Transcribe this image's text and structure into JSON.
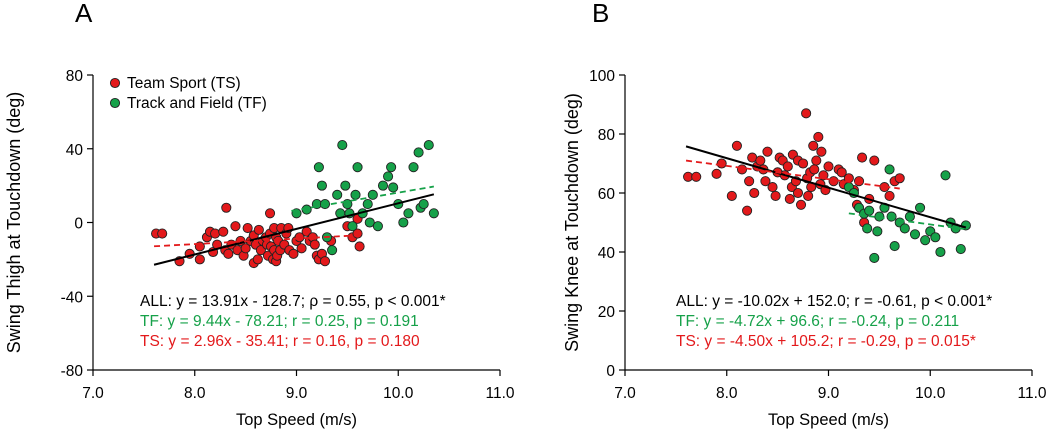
{
  "chart_data": [
    {
      "panel": "A",
      "type": "scatter",
      "xlabel": "Top Speed (m/s)",
      "ylabel": "Swing Thigh at Touchdown (deg)",
      "xlim": [
        7.0,
        11.0
      ],
      "ylim": [
        -80,
        80
      ],
      "xticks": [
        "7.0",
        "8.0",
        "9.0",
        "10.0",
        "11.0"
      ],
      "yticks": [
        "-80",
        "-40",
        "0",
        "40",
        "80"
      ],
      "legend": {
        "placement": "top-left",
        "entries": [
          "Team Sport (TS)",
          "Track and Field (TF)"
        ]
      },
      "series": [
        {
          "name": "Team Sport (TS)",
          "color": "#e3191b",
          "points": [
            [
              7.62,
              -6
            ],
            [
              7.68,
              -6
            ],
            [
              7.85,
              -21
            ],
            [
              7.95,
              -17
            ],
            [
              8.05,
              -20
            ],
            [
              8.05,
              -13
            ],
            [
              8.12,
              -8
            ],
            [
              8.15,
              -5
            ],
            [
              8.18,
              -16
            ],
            [
              8.2,
              -6
            ],
            [
              8.22,
              -12
            ],
            [
              8.28,
              -5
            ],
            [
              8.3,
              -15
            ],
            [
              8.31,
              8
            ],
            [
              8.33,
              -17
            ],
            [
              8.36,
              -12
            ],
            [
              8.4,
              -2
            ],
            [
              8.42,
              -15
            ],
            [
              8.45,
              -10
            ],
            [
              8.48,
              -18
            ],
            [
              8.5,
              -14
            ],
            [
              8.52,
              -3
            ],
            [
              8.55,
              -10
            ],
            [
              8.58,
              -7
            ],
            [
              8.58,
              -22
            ],
            [
              8.6,
              -12
            ],
            [
              8.62,
              -20
            ],
            [
              8.63,
              -4
            ],
            [
              8.65,
              -15
            ],
            [
              8.67,
              -10
            ],
            [
              8.7,
              -8
            ],
            [
              8.71,
              -12
            ],
            [
              8.72,
              -18
            ],
            [
              8.74,
              -6
            ],
            [
              8.74,
              5
            ],
            [
              8.75,
              -13
            ],
            [
              8.77,
              -20
            ],
            [
              8.78,
              -3
            ],
            [
              8.78,
              -15
            ],
            [
              8.8,
              -21
            ],
            [
              8.8,
              -8
            ],
            [
              8.81,
              -18
            ],
            [
              8.82,
              -10
            ],
            [
              8.84,
              -15
            ],
            [
              8.85,
              -3
            ],
            [
              8.88,
              -12
            ],
            [
              8.9,
              -6
            ],
            [
              8.92,
              -3
            ],
            [
              8.93,
              -15
            ],
            [
              8.97,
              -17
            ],
            [
              9.0,
              -10
            ],
            [
              9.03,
              -8
            ],
            [
              9.05,
              -14
            ],
            [
              9.1,
              -5
            ],
            [
              9.13,
              -10
            ],
            [
              9.16,
              -8
            ],
            [
              9.18,
              -12
            ],
            [
              9.2,
              -18
            ],
            [
              9.22,
              -20
            ],
            [
              9.25,
              -17
            ],
            [
              9.28,
              -21
            ],
            [
              9.34,
              -10
            ],
            [
              9.5,
              -2
            ],
            [
              9.55,
              -8
            ],
            [
              9.6,
              2
            ],
            [
              9.6,
              -6
            ],
            [
              9.62,
              -13
            ]
          ]
        },
        {
          "name": "Track and Field (TF)",
          "color": "#16a149",
          "points": [
            [
              9.0,
              5
            ],
            [
              9.1,
              7
            ],
            [
              9.2,
              10
            ],
            [
              9.22,
              30
            ],
            [
              9.25,
              20
            ],
            [
              9.28,
              10
            ],
            [
              9.3,
              -8
            ],
            [
              9.35,
              -15
            ],
            [
              9.4,
              15
            ],
            [
              9.43,
              5
            ],
            [
              9.45,
              42
            ],
            [
              9.48,
              20
            ],
            [
              9.5,
              10
            ],
            [
              9.52,
              5
            ],
            [
              9.55,
              -2
            ],
            [
              9.58,
              15
            ],
            [
              9.6,
              30
            ],
            [
              9.65,
              5
            ],
            [
              9.7,
              10
            ],
            [
              9.72,
              0
            ],
            [
              9.75,
              15
            ],
            [
              9.8,
              -2
            ],
            [
              9.85,
              20
            ],
            [
              9.9,
              25
            ],
            [
              9.93,
              30
            ],
            [
              9.95,
              19
            ],
            [
              10.0,
              10
            ],
            [
              10.05,
              0
            ],
            [
              10.1,
              5
            ],
            [
              10.15,
              30
            ],
            [
              10.2,
              38
            ],
            [
              10.22,
              8
            ],
            [
              10.25,
              10
            ],
            [
              10.3,
              42
            ],
            [
              10.35,
              5
            ]
          ]
        }
      ],
      "fit_lines": [
        {
          "name": "ALL",
          "color": "#000000",
          "style": "solid",
          "x": [
            7.6,
            10.35
          ],
          "y": [
            -22.9,
            15.3
          ]
        },
        {
          "name": "TF",
          "color": "#16a149",
          "style": "dashed",
          "x": [
            8.95,
            10.35
          ],
          "y": [
            6.3,
            19.5
          ]
        },
        {
          "name": "TS",
          "color": "#e3191b",
          "style": "dashed",
          "x": [
            7.6,
            9.65
          ],
          "y": [
            -12.9,
            -6.8
          ]
        }
      ],
      "annotations": [
        {
          "color": "#000000",
          "text": "ALL: y = 13.91x - 128.7; ρ = 0.55, p < 0.001*"
        },
        {
          "color": "#16a149",
          "text": "TF: y = 9.44x - 78.21; r = 0.25, p = 0.191"
        },
        {
          "color": "#e3191b",
          "text": "TS: y = 2.96x - 35.41; r = 0.16, p = 0.180"
        }
      ]
    },
    {
      "panel": "B",
      "type": "scatter",
      "xlabel": "Top Speed (m/s)",
      "ylabel": "Swing Knee at Touchdown (deg)",
      "xlim": [
        7.0,
        11.0
      ],
      "ylim": [
        0,
        100
      ],
      "xticks": [
        "7.0",
        "8.0",
        "9.0",
        "10.0",
        "11.0"
      ],
      "yticks": [
        "0",
        "20",
        "40",
        "60",
        "80",
        "100"
      ],
      "series": [
        {
          "name": "Team Sport (TS)",
          "color": "#e3191b",
          "points": [
            [
              7.62,
              65.5
            ],
            [
              7.7,
              65.5
            ],
            [
              7.9,
              66.5
            ],
            [
              7.95,
              70
            ],
            [
              8.05,
              59
            ],
            [
              8.1,
              76
            ],
            [
              8.15,
              68
            ],
            [
              8.2,
              54
            ],
            [
              8.22,
              64
            ],
            [
              8.25,
              72
            ],
            [
              8.27,
              60
            ],
            [
              8.3,
              69
            ],
            [
              8.33,
              71
            ],
            [
              8.36,
              68
            ],
            [
              8.38,
              64
            ],
            [
              8.4,
              74
            ],
            [
              8.45,
              62
            ],
            [
              8.48,
              59
            ],
            [
              8.5,
              67
            ],
            [
              8.52,
              72
            ],
            [
              8.55,
              71
            ],
            [
              8.57,
              66
            ],
            [
              8.6,
              69
            ],
            [
              8.62,
              58
            ],
            [
              8.64,
              62
            ],
            [
              8.65,
              73
            ],
            [
              8.68,
              64
            ],
            [
              8.7,
              71
            ],
            [
              8.7,
              60
            ],
            [
              8.73,
              56
            ],
            [
              8.75,
              70
            ],
            [
              8.78,
              87
            ],
            [
              8.79,
              65
            ],
            [
              8.8,
              59
            ],
            [
              8.82,
              67
            ],
            [
              8.83,
              62
            ],
            [
              8.85,
              76
            ],
            [
              8.86,
              68
            ],
            [
              8.88,
              71
            ],
            [
              8.9,
              79
            ],
            [
              8.92,
              63
            ],
            [
              8.93,
              74
            ],
            [
              8.95,
              66
            ],
            [
              8.97,
              61
            ],
            [
              9.0,
              69
            ],
            [
              9.05,
              64
            ],
            [
              9.1,
              68
            ],
            [
              9.13,
              67
            ],
            [
              9.15,
              63
            ],
            [
              9.2,
              65
            ],
            [
              9.25,
              61
            ],
            [
              9.28,
              56
            ],
            [
              9.3,
              64
            ],
            [
              9.33,
              72
            ],
            [
              9.35,
              50
            ],
            [
              9.4,
              58
            ],
            [
              9.45,
              71
            ],
            [
              9.55,
              62
            ],
            [
              9.6,
              59
            ],
            [
              9.65,
              64
            ],
            [
              9.7,
              65
            ]
          ]
        },
        {
          "name": "Track and Field (TF)",
          "color": "#16a149",
          "points": [
            [
              9.2,
              62
            ],
            [
              9.25,
              60
            ],
            [
              9.3,
              55
            ],
            [
              9.35,
              53
            ],
            [
              9.38,
              48
            ],
            [
              9.4,
              54
            ],
            [
              9.45,
              38
            ],
            [
              9.48,
              47
            ],
            [
              9.5,
              52
            ],
            [
              9.55,
              55
            ],
            [
              9.6,
              68
            ],
            [
              9.62,
              52
            ],
            [
              9.65,
              42
            ],
            [
              9.7,
              50
            ],
            [
              9.75,
              48
            ],
            [
              9.8,
              52
            ],
            [
              9.85,
              46
            ],
            [
              9.9,
              55
            ],
            [
              9.95,
              44
            ],
            [
              10.0,
              47
            ],
            [
              10.05,
              45
            ],
            [
              10.1,
              40
            ],
            [
              10.15,
              66
            ],
            [
              10.2,
              50
            ],
            [
              10.25,
              48
            ],
            [
              10.3,
              41
            ],
            [
              10.35,
              49
            ]
          ]
        }
      ],
      "fit_lines": [
        {
          "name": "ALL",
          "color": "#000000",
          "style": "solid",
          "x": [
            7.6,
            10.35
          ],
          "y": [
            75.8,
            48.3
          ]
        },
        {
          "name": "TF",
          "color": "#16a149",
          "style": "dashed",
          "x": [
            9.2,
            10.35
          ],
          "y": [
            53.1,
            47.7
          ]
        },
        {
          "name": "TS",
          "color": "#e3191b",
          "style": "dashed",
          "x": [
            7.6,
            9.7
          ],
          "y": [
            71.0,
            61.5
          ]
        }
      ],
      "annotations": [
        {
          "color": "#000000",
          "text": "ALL: y = -10.02x + 152.0; r = -0.61, p < 0.001*"
        },
        {
          "color": "#16a149",
          "text": "TF: y = -4.72x + 96.6; r = -0.24, p = 0.211"
        },
        {
          "color": "#e3191b",
          "text": "TS: y = -4.50x + 105.2; r = -0.29, p = 0.015*"
        }
      ]
    }
  ]
}
